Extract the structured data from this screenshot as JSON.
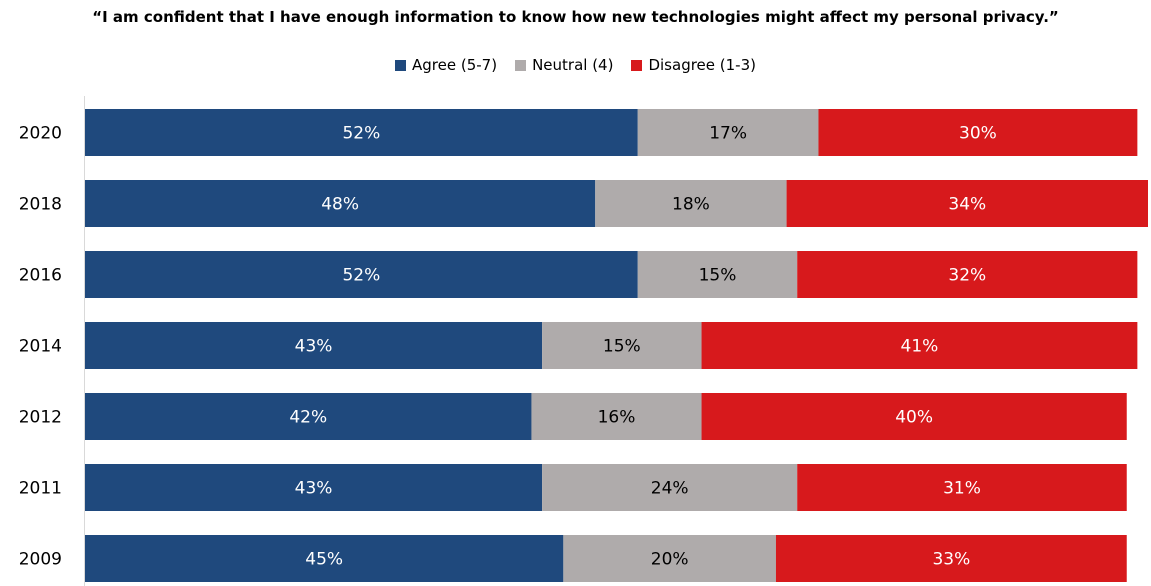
{
  "chart_data": {
    "type": "bar",
    "orientation": "horizontal",
    "stacked": true,
    "title": "“I am confident that I have enough information to know how new technologies might affect my personal privacy.”",
    "categories": [
      "2020",
      "2018",
      "2016",
      "2014",
      "2012",
      "2011",
      "2009"
    ],
    "series": [
      {
        "name": "Agree (5-7)",
        "color": "#1f497d",
        "label_color": "#ffffff",
        "values": [
          52,
          48,
          52,
          43,
          42,
          43,
          45
        ]
      },
      {
        "name": "Neutral (4)",
        "color": "#afabab",
        "label_color": "#000000",
        "values": [
          17,
          18,
          15,
          15,
          16,
          24,
          20
        ]
      },
      {
        "name": "Disagree (1-3)",
        "color": "#d7191c",
        "label_color": "#ffffff",
        "values": [
          30,
          34,
          32,
          41,
          40,
          31,
          33
        ]
      }
    ],
    "value_suffix": "%",
    "xlim": [
      0,
      100
    ],
    "grid": false,
    "legend_position": "top-center"
  }
}
